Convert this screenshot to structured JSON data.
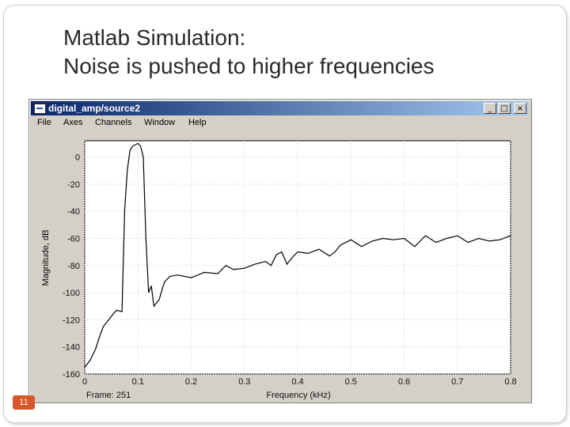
{
  "slide": {
    "title_line1": "Matlab Simulation:",
    "title_line2": "Noise is pushed to higher frequencies",
    "page_number": "11"
  },
  "window": {
    "title": "digital_amp/source2",
    "buttons": {
      "minimize": "_",
      "maximize": "□",
      "close": "×"
    },
    "menu": [
      "File",
      "Axes",
      "Channels",
      "Window",
      "Help"
    ]
  },
  "plot": {
    "frame_label": "Frame: 251"
  },
  "chart_data": {
    "type": "line",
    "xlabel": "Frequency (kHz)",
    "ylabel": "Magnitude, dB",
    "xlim": [
      0,
      0.8
    ],
    "ylim": [
      -160,
      12
    ],
    "xticks": [
      "0",
      "0.1",
      "0.2",
      "0.3",
      "0.4",
      "0.5",
      "0.6",
      "0.7",
      "0.8"
    ],
    "xtick_values": [
      0,
      0.1,
      0.2,
      0.3,
      0.4,
      0.5,
      0.6,
      0.7,
      0.8
    ],
    "yticks": [
      "0",
      "-20",
      "-40",
      "-60",
      "-80",
      "-100",
      "-120",
      "-140",
      "-160"
    ],
    "ytick_values": [
      0,
      -20,
      -40,
      -60,
      -80,
      -100,
      -120,
      -140,
      -160
    ],
    "grid": true,
    "series": [
      {
        "color": "#000000",
        "x": [
          0,
          0.01,
          0.02,
          0.03,
          0.035,
          0.045,
          0.055,
          0.06,
          0.07,
          0.075,
          0.08,
          0.085,
          0.09,
          0.1,
          0.105,
          0.11,
          0.115,
          0.12,
          0.125,
          0.13,
          0.14,
          0.145,
          0.15,
          0.16,
          0.175,
          0.2,
          0.225,
          0.25,
          0.265,
          0.28,
          0.3,
          0.32,
          0.34,
          0.35,
          0.36,
          0.37,
          0.38,
          0.39,
          0.4,
          0.42,
          0.44,
          0.46,
          0.47,
          0.48,
          0.5,
          0.52,
          0.54,
          0.56,
          0.58,
          0.6,
          0.62,
          0.64,
          0.66,
          0.68,
          0.7,
          0.72,
          0.74,
          0.76,
          0.78,
          0.8
        ],
        "y": [
          -155,
          -150,
          -142,
          -130,
          -125,
          -120,
          -115,
          -113,
          -114,
          -40,
          -10,
          5,
          8,
          10,
          8,
          0,
          -60,
          -100,
          -95,
          -110,
          -105,
          -98,
          -92,
          -88,
          -87,
          -89,
          -85,
          -86,
          -80,
          -83,
          -82,
          -79,
          -77,
          -80,
          -72,
          -70,
          -79,
          -74,
          -70,
          -71,
          -68,
          -73,
          -70,
          -65,
          -61,
          -66,
          -62,
          -60,
          -61,
          -60,
          -66,
          -58,
          -63,
          -60,
          -58,
          -63,
          -60,
          -62,
          -61,
          -58
        ]
      }
    ]
  }
}
